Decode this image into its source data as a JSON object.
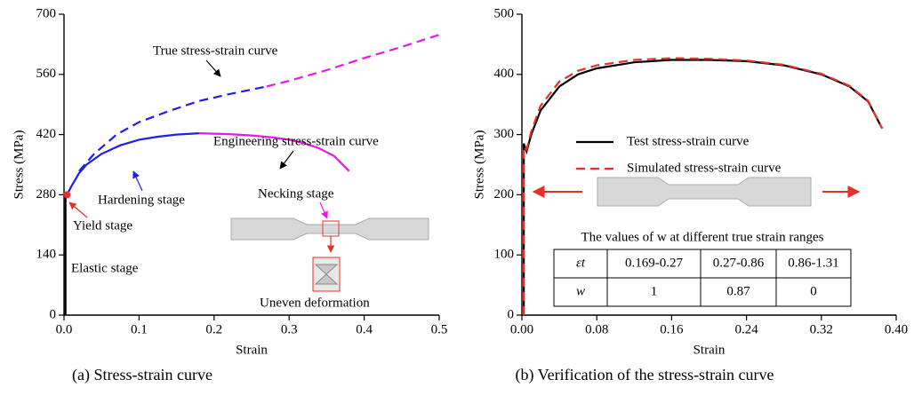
{
  "chart_data": [
    {
      "type": "line",
      "xlabel": "Strain",
      "ylabel": "Stress (MPa)",
      "caption": "(a) Stress-strain curve",
      "xlim": [
        0,
        0.5
      ],
      "xticks": [
        {
          "value": 0,
          "label": "0.0"
        },
        0.1,
        0.2,
        0.3,
        0.4,
        0.5
      ],
      "ylim": [
        0,
        700
      ],
      "yticks": [
        0,
        140,
        280,
        420,
        560,
        700
      ],
      "series": [
        {
          "color": "#000000",
          "style": "solid",
          "x": [
            0.002,
            0.002
          ],
          "values": [
            0,
            280
          ]
        },
        {
          "color": "#1f1fe6",
          "style": "solid",
          "x": [
            0.004,
            0.01,
            0.02,
            0.03,
            0.05,
            0.075,
            0.1,
            0.125,
            0.15,
            0.18
          ],
          "values": [
            280,
            300,
            330,
            350,
            375,
            395,
            408,
            415,
            420,
            423
          ]
        },
        {
          "color": "#e619e6",
          "style": "solid",
          "x": [
            0.18,
            0.2,
            0.22,
            0.25,
            0.28,
            0.3,
            0.32,
            0.34,
            0.36,
            0.38
          ],
          "values": [
            423,
            422,
            421,
            418,
            413,
            408,
            400,
            388,
            370,
            335
          ]
        },
        {
          "color": "#1f1fe6",
          "style": "dashed",
          "x": [
            0.02,
            0.04,
            0.07,
            0.1,
            0.14,
            0.18,
            0.22,
            0.27
          ],
          "values": [
            335,
            375,
            420,
            449,
            475,
            498,
            514,
            532
          ]
        },
        {
          "color": "#e619e6",
          "style": "dashed",
          "x": [
            0.27,
            0.3,
            0.35,
            0.4,
            0.45,
            0.5
          ],
          "values": [
            532,
            545,
            570,
            598,
            624,
            652
          ]
        },
        {
          "color": "#e8302a",
          "style": "marker",
          "x": [
            0.004
          ],
          "values": [
            280
          ]
        }
      ],
      "annotations": [
        {
          "text": "True stress-strain curve",
          "color": "#000000"
        },
        {
          "text": "Engineering stress-strain curve",
          "color": "#000000"
        },
        {
          "text": "Hardening stage",
          "color": "#1f1fe6"
        },
        {
          "text": "Necking stage",
          "color": "#e619e6"
        },
        {
          "text": "Yield stage",
          "color": "#e8302a"
        },
        {
          "text": "Elastic stage",
          "color": "#000000"
        },
        {
          "text": "Uneven deformation",
          "color": "#000000"
        }
      ]
    },
    {
      "type": "line",
      "xlabel": "Strain",
      "ylabel": "Stress (MPa)",
      "caption": "(b) Verification of the stress-strain curve",
      "xlim": [
        0,
        0.4
      ],
      "xticks": [
        {
          "value": 0,
          "label": "0.00"
        },
        {
          "value": 0.08,
          "label": "0.08"
        },
        {
          "value": 0.16,
          "label": "0.16"
        },
        {
          "value": 0.24,
          "label": "0.24"
        },
        {
          "value": 0.32,
          "label": "0.32"
        },
        {
          "value": 0.4,
          "label": "0.40"
        }
      ],
      "ylim": [
        0,
        500
      ],
      "yticks": [
        0,
        100,
        200,
        300,
        400,
        500
      ],
      "legend": true,
      "series": [
        {
          "name": "Test stress-strain curve",
          "color": "#000000",
          "style": "solid",
          "x": [
            0.002,
            0.002,
            0.005,
            0.01,
            0.02,
            0.04,
            0.06,
            0.08,
            0.12,
            0.16,
            0.2,
            0.24,
            0.28,
            0.32,
            0.35,
            0.37,
            0.385
          ],
          "values": [
            0,
            285,
            272,
            300,
            340,
            380,
            400,
            410,
            420,
            424,
            424,
            422,
            415,
            400,
            380,
            355,
            310
          ]
        },
        {
          "name": "Simulated stress-strain curve",
          "color": "#e8302a",
          "style": "dashed",
          "x": [
            0.002,
            0.002,
            0.005,
            0.01,
            0.02,
            0.04,
            0.06,
            0.08,
            0.12,
            0.16,
            0.2,
            0.24,
            0.28,
            0.32,
            0.35,
            0.37,
            0.385
          ],
          "values": [
            0,
            280,
            275,
            305,
            348,
            388,
            406,
            415,
            424,
            427,
            426,
            423,
            416,
            401,
            381,
            356,
            310
          ]
        }
      ],
      "table": {
        "title": "The values of w at different true strain ranges",
        "rows": [
          [
            "εt",
            "0.169-0.27",
            "0.27-0.86",
            "0.86-1.31"
          ],
          [
            "w",
            "1",
            "0.87",
            "0"
          ]
        ]
      }
    }
  ]
}
